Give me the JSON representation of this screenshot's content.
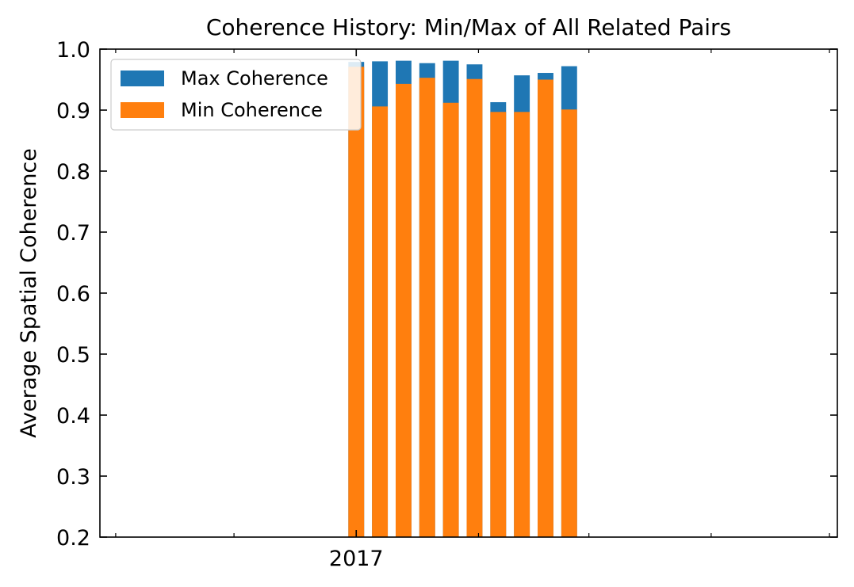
{
  "chart_data": {
    "type": "bar",
    "title": "Coherence History: Min/Max of All Related Pairs",
    "xlabel": "",
    "ylabel": "Average Spatial Coherence",
    "ylim": [
      0.2,
      1.0
    ],
    "yticks": [
      "0.2",
      "0.3",
      "0.4",
      "0.5",
      "0.6",
      "0.7",
      "0.8",
      "0.9",
      "1.0"
    ],
    "xticks": [
      "2017"
    ],
    "x_axis": "date",
    "xlim": [
      "2016-10-28",
      "2017-05-03"
    ],
    "x_ticks_minor": [
      "2016-11-01",
      "2016-12-01",
      "2017-01-01",
      "2017-02-01",
      "2017-03-01",
      "2017-04-01",
      "2017-05-01"
    ],
    "x_tick_labels": [
      {
        "date": "2017-01-01",
        "label": "2017"
      }
    ],
    "bar_width_days": 4,
    "grid": false,
    "legend_position": "top-left",
    "series": [
      {
        "name": "Max Coherence",
        "color": "#1f77b4",
        "x": [
          "2017-01-01",
          "2017-01-07",
          "2017-01-13",
          "2017-01-19",
          "2017-01-25",
          "2017-01-31",
          "2017-02-06",
          "2017-02-12",
          "2017-02-18",
          "2017-02-24"
        ],
        "values": [
          0.979,
          0.98,
          0.981,
          0.977,
          0.981,
          0.975,
          0.913,
          0.957,
          0.961,
          0.972
        ]
      },
      {
        "name": "Min Coherence",
        "color": "#ff7f0e",
        "x": [
          "2017-01-01",
          "2017-01-07",
          "2017-01-13",
          "2017-01-19",
          "2017-01-25",
          "2017-01-31",
          "2017-02-06",
          "2017-02-12",
          "2017-02-18",
          "2017-02-24"
        ],
        "values": [
          0.971,
          0.906,
          0.943,
          0.953,
          0.912,
          0.951,
          0.897,
          0.897,
          0.95,
          0.901
        ]
      }
    ]
  }
}
